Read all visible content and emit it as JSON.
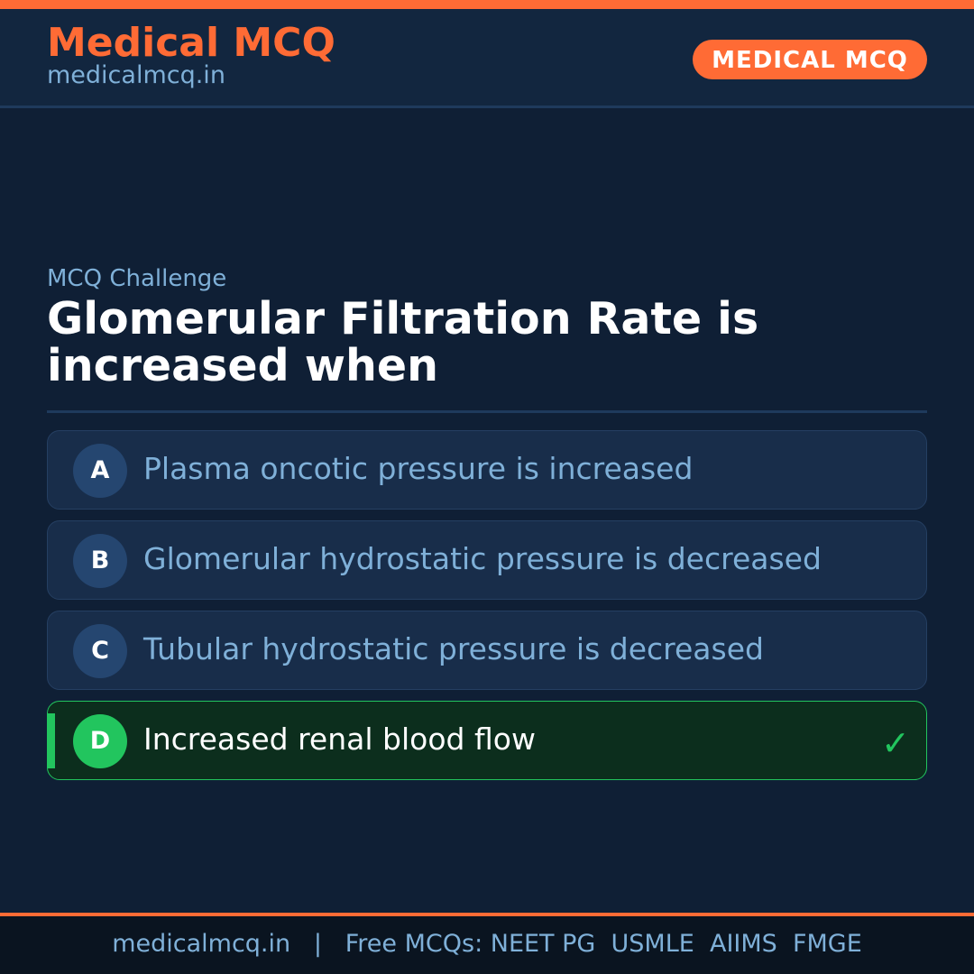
{
  "header": {
    "brand": "Medical MCQ",
    "site": "medicalmcq.in",
    "badge": "MEDICAL MCQ"
  },
  "question": {
    "kicker": "MCQ Challenge",
    "text": "Glomerular Filtration Rate is increased when"
  },
  "options": [
    {
      "letter": "A",
      "text": "Plasma oncotic pressure is increased"
    },
    {
      "letter": "B",
      "text": "Glomerular hydrostatic pressure is decreased"
    },
    {
      "letter": "C",
      "text": "Tubular hydrostatic pressure is decreased"
    },
    {
      "letter": "D",
      "text": "Increased renal blood flow",
      "correct": true,
      "icon": "checkmark-icon"
    }
  ],
  "footer": {
    "text": "medicalmcq.in   |   Free MCQs: NEET PG  USMLE  AIIMS  FMGE"
  },
  "colors": {
    "accent": "#ff6b35",
    "correct": "#22c55e",
    "background": "#0f1f35"
  }
}
